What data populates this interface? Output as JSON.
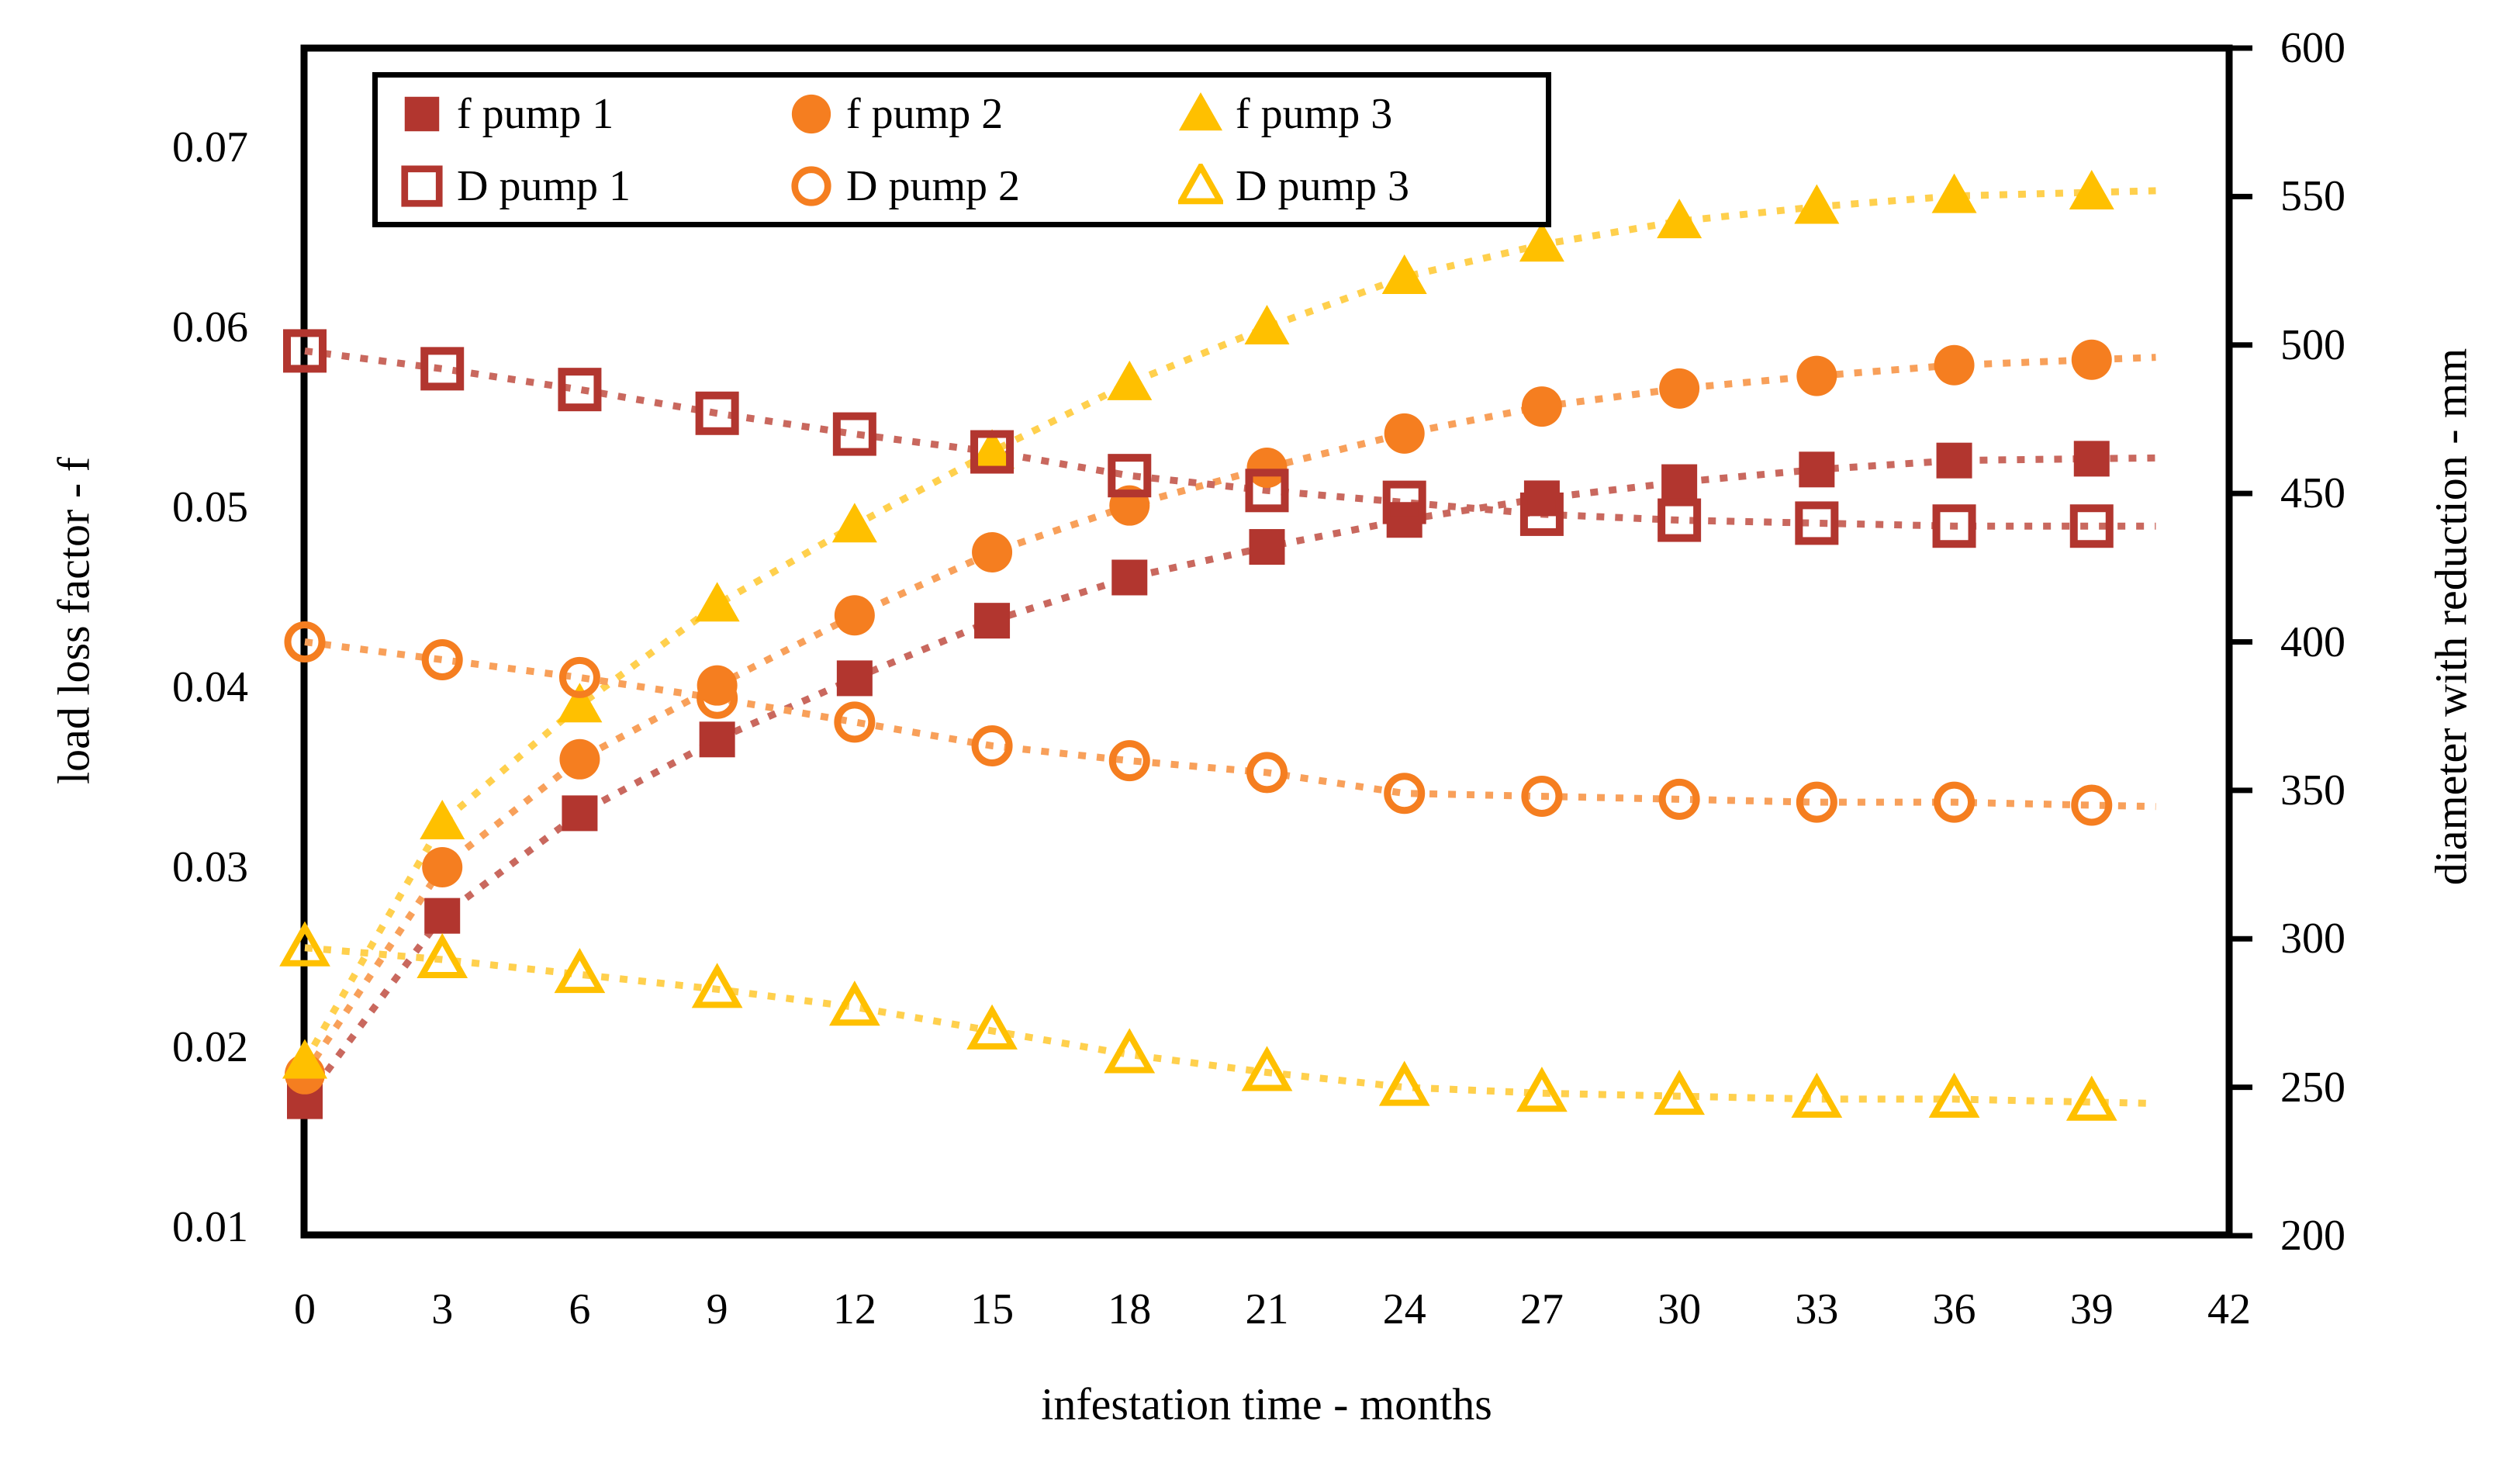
{
  "figure": {
    "background": "#ffffff",
    "axes": {
      "x": {
        "title": "infestation time - months",
        "tick_labels": [
          "0",
          "3",
          "6",
          "9",
          "12",
          "15",
          "18",
          "21",
          "24",
          "27",
          "30",
          "33",
          "36",
          "39",
          "42"
        ],
        "min": 0,
        "max": 42
      },
      "y_left": {
        "title": "load loss factor - f",
        "tick_labels": [
          "0.07",
          "0.06",
          "0.05",
          "0.04",
          "0.03",
          "0.02",
          "0.01"
        ],
        "tick_values": [
          0.07,
          0.06,
          0.05,
          0.04,
          0.03,
          0.02,
          0.01
        ],
        "min": 0.01,
        "max": 0.0755
      },
      "y_right": {
        "title": "diameter with reduction - mm",
        "tick_labels": [
          "600",
          "550",
          "500",
          "450",
          "400",
          "350",
          "300",
          "250",
          "200"
        ],
        "tick_values": [
          600,
          550,
          500,
          450,
          400,
          350,
          300,
          250,
          200
        ],
        "min": 200,
        "max": 600
      }
    }
  },
  "chart_data": {
    "type": "scatter",
    "title": "",
    "xlabel": "infestation time - months",
    "ylabel_left": "load loss factor - f",
    "ylabel_right": "diameter with reduction - mm",
    "xlim": [
      0,
      42
    ],
    "ylim_left": [
      0.01,
      0.0755
    ],
    "ylim_right": [
      200,
      600
    ],
    "grid": false,
    "legend_position": "top-left",
    "x_months": [
      0,
      3,
      6,
      9,
      12,
      15,
      18,
      21,
      24,
      27,
      30,
      33,
      36,
      39
    ],
    "series": [
      {
        "name": "f pump 1",
        "axis": "left",
        "marker": "square-filled",
        "color": "#B2362F",
        "line_color": "#C9685E",
        "values": [
          0.017,
          0.0273,
          0.033,
          0.0371,
          0.0405,
          0.0437,
          0.0461,
          0.0478,
          0.0493,
          0.0505,
          0.0514,
          0.0521,
          0.0526,
          0.0527
        ]
      },
      {
        "name": "f pump 2",
        "axis": "left",
        "marker": "circle-filled",
        "color": "#F57E20",
        "line_color": "#F8A05A",
        "values": [
          0.0185,
          0.03,
          0.036,
          0.0401,
          0.044,
          0.0475,
          0.0501,
          0.0522,
          0.0541,
          0.0556,
          0.0566,
          0.0573,
          0.0579,
          0.0582
        ]
      },
      {
        "name": "f pump 3",
        "axis": "left",
        "marker": "triangle-filled",
        "color": "#FFC000",
        "line_color": "#FFD04D",
        "values": [
          0.0192,
          0.0325,
          0.039,
          0.0446,
          0.049,
          0.0531,
          0.0569,
          0.06,
          0.0628,
          0.0646,
          0.0659,
          0.0667,
          0.0673,
          0.0675
        ]
      },
      {
        "name": "D pump 1",
        "axis": "right",
        "marker": "square-open",
        "color": "#B2362F",
        "line_color": "#C9685E",
        "values": [
          498,
          492,
          485,
          477,
          470,
          464,
          456,
          451,
          447,
          443,
          441,
          440,
          439,
          439
        ]
      },
      {
        "name": "D pump 2",
        "axis": "right",
        "marker": "circle-open",
        "color": "#F57E20",
        "line_color": "#F8A05A",
        "values": [
          400,
          394,
          388,
          381,
          373,
          365,
          360,
          356,
          349,
          348,
          347,
          346,
          346,
          345
        ]
      },
      {
        "name": "D pump 3",
        "axis": "right",
        "marker": "triangle-open",
        "color": "#FFC000",
        "line_color": "#FFD04D",
        "values": [
          297,
          293,
          288,
          283,
          277,
          269,
          261,
          255,
          250,
          248,
          247,
          246,
          246,
          245
        ]
      }
    ]
  }
}
